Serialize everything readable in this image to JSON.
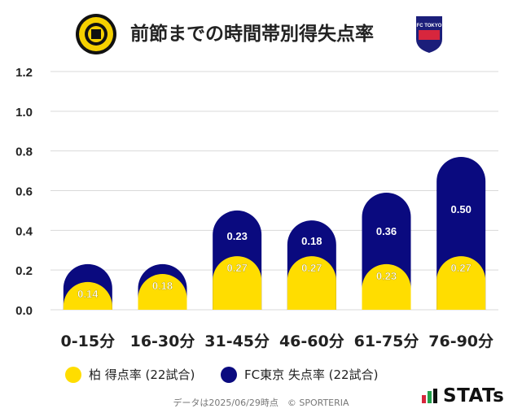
{
  "header": {
    "title": "前節までの時間帯別得失点率",
    "home_logo_icon": "kashiwa-reysol-crest-icon",
    "away_logo_icon": "fc-tokyo-crest-icon",
    "away_logo_text": "FC TOKYO"
  },
  "chart_data": {
    "type": "bar",
    "stacked": true,
    "categories": [
      "0-15分",
      "16-30分",
      "31-45分",
      "46-60分",
      "61-75分",
      "76-90分"
    ],
    "series": [
      {
        "name": "柏 得点率 (22試合)",
        "color": "#FFDD00",
        "values": [
          0.14,
          0.18,
          0.27,
          0.27,
          0.23,
          0.27
        ]
      },
      {
        "name": "FC東京 失点率 (22試合)",
        "color": "#0A0A7F",
        "values": [
          0.09,
          0.05,
          0.23,
          0.18,
          0.36,
          0.5
        ],
        "value_labels": [
          "",
          "",
          "0.23",
          "0.18",
          "0.36",
          "0.50"
        ]
      }
    ],
    "ylim": [
      0,
      1.2
    ],
    "yticks": [
      "0.0",
      "0.2",
      "0.4",
      "0.6",
      "0.8",
      "1.0",
      "1.2"
    ],
    "ytick_values": [
      0,
      0.2,
      0.4,
      0.6,
      0.8,
      1.0,
      1.2
    ],
    "grid": true,
    "legend_position": "bottom"
  },
  "footer": {
    "note": "データは2025/06/29時点　© SPORTERIA",
    "brand": "STATs"
  }
}
